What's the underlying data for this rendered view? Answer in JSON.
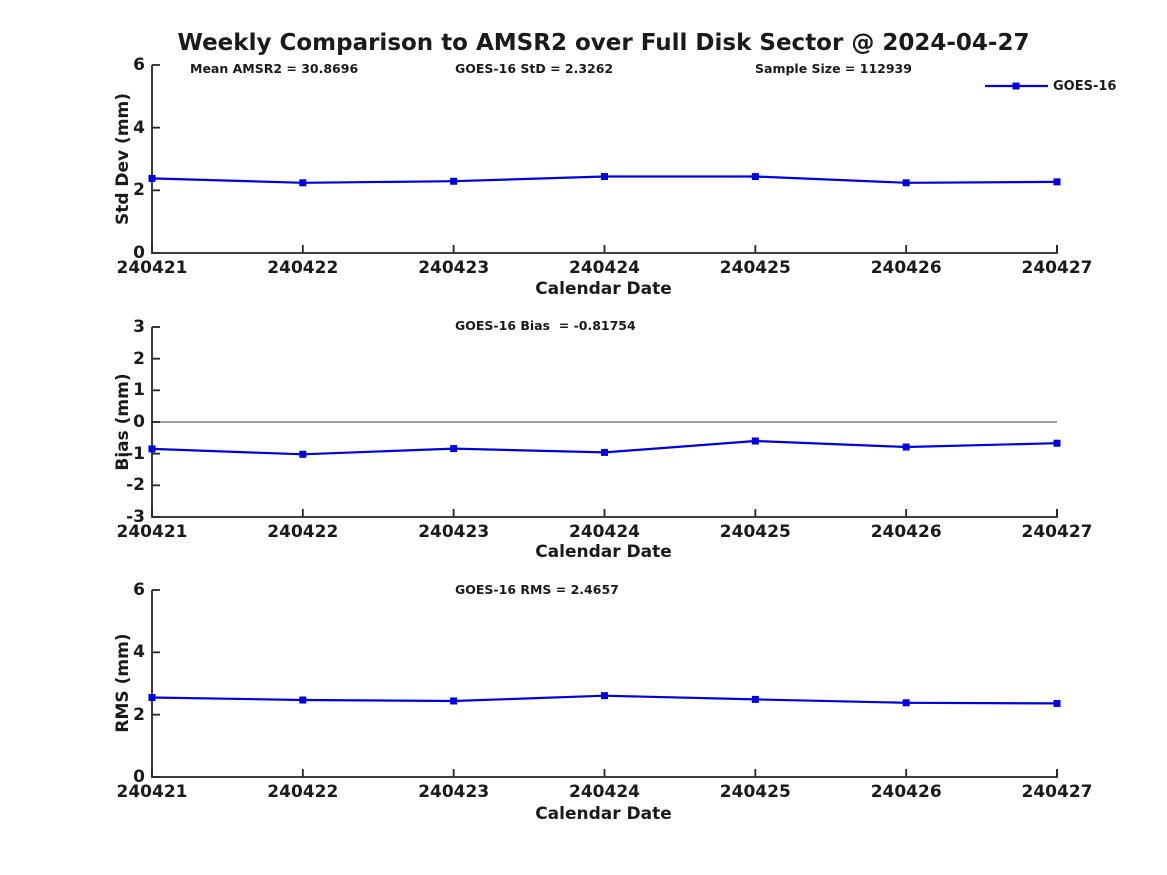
{
  "title": "Weekly Comparison to AMSR2 over Full Disk Sector @ 2024-04-27",
  "legend": {
    "label": "GOES-16"
  },
  "colors": {
    "series": "#0000e0",
    "zero_line": "#808080",
    "axis": "#262626",
    "text": "#1a1a1a"
  },
  "chart_data": [
    {
      "name": "std-dev-panel",
      "type": "line",
      "title": "",
      "ylabel": "Std Dev (mm)",
      "xlabel": "Calendar Date",
      "categories": [
        "240421",
        "240422",
        "240423",
        "240424",
        "240425",
        "240426",
        "240427"
      ],
      "ylim": [
        0,
        6
      ],
      "yticks": [
        0,
        2,
        4,
        6
      ],
      "grid": false,
      "zero_line": false,
      "legend_position": "top-right",
      "series": [
        {
          "name": "GOES-16",
          "marker": "square",
          "color": "#0000e0",
          "values": [
            2.38,
            2.24,
            2.29,
            2.44,
            2.44,
            2.24,
            2.27
          ]
        }
      ],
      "annotations": [
        "Mean AMSR2 = 30.8696",
        "GOES-16 StD = 2.3262",
        "Sample Size = 112939"
      ]
    },
    {
      "name": "bias-panel",
      "type": "line",
      "title": "",
      "ylabel": "Bias (mm)",
      "xlabel": "Calendar Date",
      "categories": [
        "240421",
        "240422",
        "240423",
        "240424",
        "240425",
        "240426",
        "240427"
      ],
      "ylim": [
        -3,
        3
      ],
      "yticks": [
        3,
        2,
        1,
        0,
        -1,
        -2,
        -3
      ],
      "grid": false,
      "zero_line": true,
      "series": [
        {
          "name": "GOES-16",
          "marker": "square",
          "color": "#0000e0",
          "values": [
            -0.85,
            -1.02,
            -0.84,
            -0.96,
            -0.6,
            -0.79,
            -0.67
          ]
        }
      ],
      "annotations": [
        "GOES-16 Bias  = -0.81754"
      ]
    },
    {
      "name": "rms-panel",
      "type": "line",
      "title": "",
      "ylabel": "RMS (mm)",
      "xlabel": "Calendar Date",
      "categories": [
        "240421",
        "240422",
        "240423",
        "240424",
        "240425",
        "240426",
        "240427"
      ],
      "ylim": [
        0,
        6
      ],
      "yticks": [
        0,
        2,
        4,
        6
      ],
      "grid": false,
      "zero_line": false,
      "series": [
        {
          "name": "GOES-16",
          "marker": "square",
          "color": "#0000e0",
          "values": [
            2.55,
            2.47,
            2.44,
            2.61,
            2.49,
            2.38,
            2.36
          ]
        }
      ],
      "annotations": [
        "GOES-16 RMS = 2.4657"
      ]
    }
  ]
}
